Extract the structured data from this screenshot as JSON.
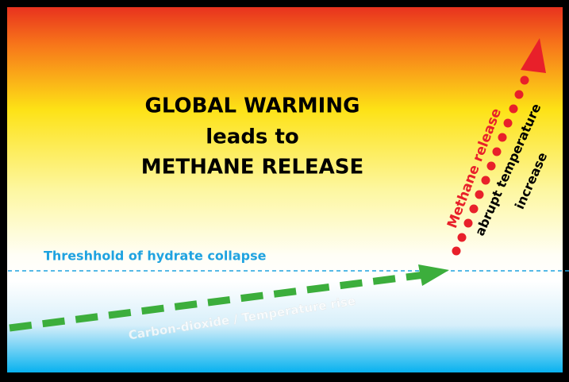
{
  "title": [
    "GLOBAL WARMING",
    "leads to",
    "METHANE RELEASE"
  ],
  "threshold_label": "Threshhold of hydrate collapse",
  "co2_label": "Carbon-dioxide / Temperature  rise",
  "methane_label": "Methane release",
  "abrupt_label": [
    "abrupt temperature",
    "increase"
  ]
}
